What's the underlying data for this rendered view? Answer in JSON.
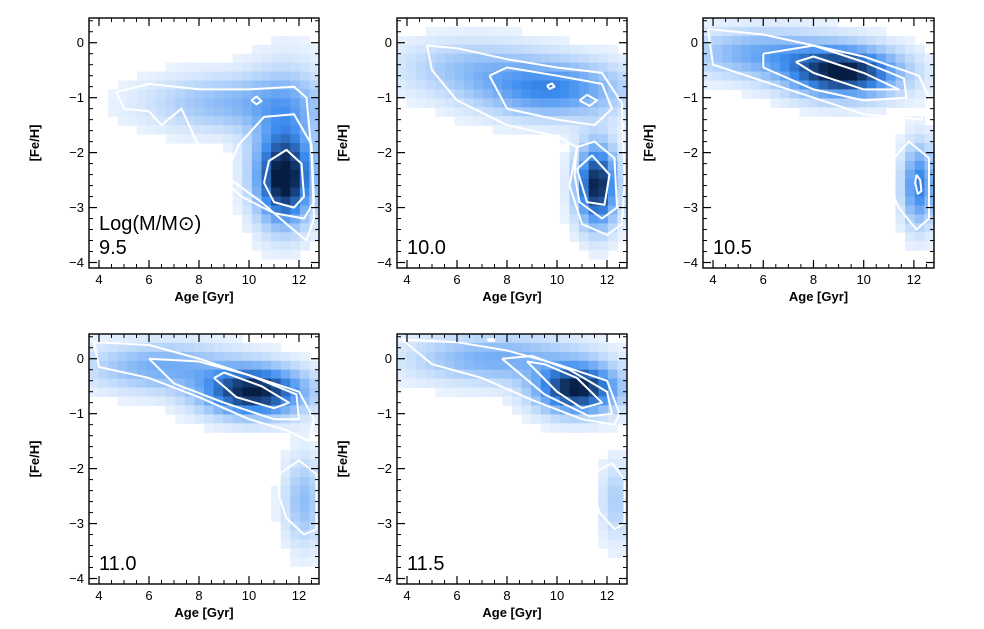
{
  "colors": {
    "low": "#f4f9ff",
    "mid": "#3c8cf0",
    "high": "#061d44",
    "contour": "#ffffff",
    "axis": "#000000"
  },
  "chart_data": [
    {
      "type": "heatmap",
      "label_lines": [
        "Log(M/M⊙)",
        "9.5"
      ],
      "xlabel": "Age [Gyr]",
      "ylabel": "[Fe/H]",
      "xlim": [
        3.6,
        12.8
      ],
      "ylim": [
        -4.1,
        0.45
      ],
      "xticks": [
        4,
        6,
        8,
        10,
        12
      ],
      "yticks": [
        0,
        -1,
        -2,
        -3,
        -4
      ],
      "blobs": [
        {
          "x": 11.4,
          "y": -2.5,
          "sx": 0.75,
          "sy": 0.55,
          "amp": 1.0
        },
        {
          "x": 9.5,
          "y": -1.1,
          "sx": 2.4,
          "sy": 0.35,
          "amp": 0.32
        },
        {
          "x": 11.5,
          "y": -1.5,
          "sx": 1.0,
          "sy": 0.8,
          "amp": 0.25
        }
      ],
      "contours": [
        [
          [
            4.7,
            -0.9
          ],
          [
            6.0,
            -0.75
          ],
          [
            8.0,
            -0.85
          ],
          [
            10.0,
            -0.85
          ],
          [
            11.8,
            -0.8
          ],
          [
            12.3,
            -1.0
          ],
          [
            12.5,
            -2.0
          ],
          [
            12.6,
            -3.2
          ],
          [
            12.3,
            -3.6
          ],
          [
            11.5,
            -3.3
          ],
          [
            10.5,
            -2.9
          ],
          [
            9.0,
            -2.4
          ],
          [
            8.0,
            -1.9
          ],
          [
            7.3,
            -1.2
          ],
          [
            6.5,
            -1.5
          ],
          [
            6.0,
            -1.25
          ],
          [
            5.0,
            -1.2
          ],
          [
            4.7,
            -0.9
          ]
        ],
        [
          [
            9.0,
            -2.5
          ],
          [
            9.6,
            -1.85
          ],
          [
            10.6,
            -1.35
          ],
          [
            11.8,
            -1.3
          ],
          [
            12.5,
            -1.85
          ],
          [
            12.6,
            -2.9
          ],
          [
            12.2,
            -3.2
          ],
          [
            11.0,
            -3.1
          ],
          [
            9.7,
            -2.8
          ],
          [
            9.0,
            -2.5
          ]
        ],
        [
          [
            10.6,
            -2.55
          ],
          [
            10.8,
            -2.15
          ],
          [
            11.5,
            -1.95
          ],
          [
            12.1,
            -2.2
          ],
          [
            12.2,
            -2.8
          ],
          [
            11.8,
            -3.0
          ],
          [
            11.0,
            -2.9
          ],
          [
            10.6,
            -2.55
          ]
        ],
        [
          [
            10.1,
            -1.05
          ],
          [
            10.3,
            -0.98
          ],
          [
            10.5,
            -1.06
          ],
          [
            10.3,
            -1.12
          ],
          [
            10.1,
            -1.05
          ]
        ]
      ]
    },
    {
      "type": "heatmap",
      "label_lines": [
        "10.0"
      ],
      "xlabel": "Age [Gyr]",
      "ylabel": "[Fe/H]",
      "xlim": [
        3.6,
        12.8
      ],
      "ylim": [
        -4.1,
        0.45
      ],
      "xticks": [
        4,
        6,
        8,
        10,
        12
      ],
      "yticks": [
        0,
        -1,
        -2,
        -3,
        -4
      ],
      "blobs": [
        {
          "x": 11.6,
          "y": -2.6,
          "sx": 0.55,
          "sy": 0.5,
          "amp": 1.0
        },
        {
          "x": 9.8,
          "y": -0.85,
          "sx": 2.0,
          "sy": 0.35,
          "amp": 0.55
        },
        {
          "x": 6.5,
          "y": -0.45,
          "sx": 2.0,
          "sy": 0.35,
          "amp": 0.25
        }
      ],
      "contours": [
        [
          [
            4.8,
            -0.05
          ],
          [
            6.0,
            -0.1
          ],
          [
            8.0,
            -0.3
          ],
          [
            10.0,
            -0.45
          ],
          [
            11.8,
            -0.55
          ],
          [
            12.6,
            -1.1
          ],
          [
            12.7,
            -2.5
          ],
          [
            12.6,
            -3.3
          ],
          [
            12.0,
            -3.5
          ],
          [
            11.0,
            -3.3
          ],
          [
            10.5,
            -2.6
          ],
          [
            10.8,
            -1.9
          ],
          [
            10.0,
            -1.7
          ],
          [
            8.0,
            -1.5
          ],
          [
            6.0,
            -1.05
          ],
          [
            5.0,
            -0.5
          ],
          [
            4.8,
            -0.05
          ]
        ],
        [
          [
            7.3,
            -0.6
          ],
          [
            8.0,
            -0.45
          ],
          [
            10.0,
            -0.6
          ],
          [
            11.8,
            -0.75
          ],
          [
            12.2,
            -1.2
          ],
          [
            11.5,
            -1.5
          ],
          [
            10.0,
            -1.4
          ],
          [
            8.0,
            -1.2
          ],
          [
            7.3,
            -0.6
          ]
        ],
        [
          [
            10.8,
            -1.9
          ],
          [
            11.5,
            -1.8
          ],
          [
            12.3,
            -2.1
          ],
          [
            12.4,
            -3.0
          ],
          [
            11.8,
            -3.2
          ],
          [
            10.9,
            -2.9
          ],
          [
            10.7,
            -2.4
          ],
          [
            10.8,
            -1.9
          ]
        ],
        [
          [
            10.8,
            -2.3
          ],
          [
            11.4,
            -2.05
          ],
          [
            12.1,
            -2.4
          ],
          [
            11.9,
            -2.95
          ],
          [
            11.2,
            -2.9
          ],
          [
            10.8,
            -2.3
          ]
        ],
        [
          [
            10.9,
            -1.05
          ],
          [
            11.2,
            -0.95
          ],
          [
            11.6,
            -1.05
          ],
          [
            11.3,
            -1.15
          ],
          [
            10.9,
            -1.05
          ]
        ],
        [
          [
            9.6,
            -0.78
          ],
          [
            9.8,
            -0.74
          ],
          [
            9.9,
            -0.8
          ],
          [
            9.7,
            -0.84
          ],
          [
            9.6,
            -0.78
          ]
        ]
      ]
    },
    {
      "type": "heatmap",
      "label_lines": [
        "10.5"
      ],
      "xlabel": "Age [Gyr]",
      "ylabel": "[Fe/H]",
      "xlim": [
        3.6,
        12.8
      ],
      "ylim": [
        -4.1,
        0.45
      ],
      "xticks": [
        4,
        6,
        8,
        10,
        12
      ],
      "yticks": [
        0,
        -1,
        -2,
        -3,
        -4
      ],
      "blobs": [
        {
          "x": 9.2,
          "y": -0.55,
          "sx": 1.5,
          "sy": 0.3,
          "amp": 1.0
        },
        {
          "x": 6.0,
          "y": -0.2,
          "sx": 2.0,
          "sy": 0.3,
          "amp": 0.4
        },
        {
          "x": 12.2,
          "y": -2.6,
          "sx": 0.45,
          "sy": 0.5,
          "amp": 0.6
        }
      ],
      "contours": [
        [
          [
            3.8,
            0.25
          ],
          [
            6.0,
            0.15
          ],
          [
            8.0,
            -0.05
          ],
          [
            10.0,
            -0.25
          ],
          [
            12.2,
            -0.6
          ],
          [
            12.6,
            -1.0
          ],
          [
            12.3,
            -1.4
          ],
          [
            10.0,
            -1.3
          ],
          [
            8.0,
            -1.0
          ],
          [
            6.0,
            -0.7
          ],
          [
            4.0,
            -0.4
          ],
          [
            3.8,
            0.25
          ]
        ],
        [
          [
            6.0,
            -0.2
          ],
          [
            8.0,
            -0.05
          ],
          [
            10.0,
            -0.35
          ],
          [
            11.6,
            -0.65
          ],
          [
            11.7,
            -1.0
          ],
          [
            10.0,
            -1.05
          ],
          [
            8.0,
            -0.85
          ],
          [
            6.0,
            -0.45
          ],
          [
            6.0,
            -0.2
          ]
        ],
        [
          [
            7.3,
            -0.35
          ],
          [
            8.0,
            -0.25
          ],
          [
            10.0,
            -0.55
          ],
          [
            11.4,
            -0.85
          ],
          [
            10.0,
            -0.85
          ],
          [
            8.0,
            -0.55
          ],
          [
            7.3,
            -0.35
          ]
        ],
        [
          [
            11.0,
            -2.2
          ],
          [
            11.8,
            -1.8
          ],
          [
            12.6,
            -2.1
          ],
          [
            12.6,
            -3.2
          ],
          [
            12.1,
            -3.4
          ],
          [
            11.4,
            -3.0
          ],
          [
            11.0,
            -2.6
          ],
          [
            11.0,
            -2.2
          ]
        ],
        [
          [
            12.1,
            -2.4
          ],
          [
            12.25,
            -2.5
          ],
          [
            12.3,
            -2.7
          ],
          [
            12.15,
            -2.75
          ],
          [
            12.05,
            -2.55
          ],
          [
            12.1,
            -2.4
          ]
        ]
      ]
    },
    {
      "type": "heatmap",
      "label_lines": [
        "11.0"
      ],
      "xlabel": "Age [Gyr]",
      "ylabel": "[Fe/H]",
      "xlim": [
        3.6,
        12.8
      ],
      "ylim": [
        -4.1,
        0.45
      ],
      "xticks": [
        4,
        6,
        8,
        10,
        12
      ],
      "yticks": [
        0,
        -1,
        -2,
        -3,
        -4
      ],
      "blobs": [
        {
          "x": 10.2,
          "y": -0.6,
          "sx": 1.4,
          "sy": 0.3,
          "amp": 1.0
        },
        {
          "x": 6.5,
          "y": -0.15,
          "sx": 2.0,
          "sy": 0.3,
          "amp": 0.38
        },
        {
          "x": 12.2,
          "y": -2.6,
          "sx": 0.55,
          "sy": 0.55,
          "amp": 0.3
        }
      ],
      "contours": [
        [
          [
            3.8,
            0.3
          ],
          [
            6.0,
            0.25
          ],
          [
            8.0,
            0.0
          ],
          [
            10.0,
            -0.3
          ],
          [
            12.0,
            -0.6
          ],
          [
            12.6,
            -1.1
          ],
          [
            12.4,
            -1.5
          ],
          [
            11.5,
            -1.3
          ],
          [
            10.0,
            -1.1
          ],
          [
            8.0,
            -0.7
          ],
          [
            6.0,
            -0.35
          ],
          [
            4.0,
            -0.15
          ],
          [
            3.8,
            0.3
          ]
        ],
        [
          [
            6.0,
            0.0
          ],
          [
            8.0,
            -0.05
          ],
          [
            10.0,
            -0.3
          ],
          [
            11.9,
            -0.65
          ],
          [
            12.0,
            -1.1
          ],
          [
            11.0,
            -1.1
          ],
          [
            9.0,
            -0.8
          ],
          [
            7.0,
            -0.45
          ],
          [
            6.0,
            0.0
          ]
        ],
        [
          [
            8.6,
            -0.35
          ],
          [
            9.0,
            -0.25
          ],
          [
            10.5,
            -0.5
          ],
          [
            11.6,
            -0.8
          ],
          [
            11.0,
            -0.9
          ],
          [
            9.5,
            -0.7
          ],
          [
            8.6,
            -0.35
          ]
        ],
        [
          [
            11.2,
            -2.1
          ],
          [
            12.0,
            -1.85
          ],
          [
            12.7,
            -2.1
          ],
          [
            12.7,
            -3.1
          ],
          [
            12.2,
            -3.2
          ],
          [
            11.5,
            -2.9
          ],
          [
            11.2,
            -2.5
          ],
          [
            11.2,
            -2.1
          ]
        ]
      ]
    },
    {
      "type": "heatmap",
      "label_lines": [
        "11.5"
      ],
      "xlabel": "Age [Gyr]",
      "ylabel": "[Fe/H]",
      "xlim": [
        3.6,
        12.8
      ],
      "ylim": [
        -4.1,
        0.45
      ],
      "xticks": [
        4,
        6,
        8,
        10,
        12
      ],
      "yticks": [
        0,
        -1,
        -2,
        -3,
        -4
      ],
      "blobs": [
        {
          "x": 10.8,
          "y": -0.55,
          "sx": 1.1,
          "sy": 0.3,
          "amp": 1.0
        },
        {
          "x": 7.5,
          "y": 0.0,
          "sx": 2.3,
          "sy": 0.3,
          "amp": 0.38
        },
        {
          "x": 12.4,
          "y": -2.6,
          "sx": 0.45,
          "sy": 0.5,
          "amp": 0.22
        }
      ],
      "contours": [
        [
          [
            3.8,
            0.35
          ],
          [
            6.0,
            0.3
          ],
          [
            8.0,
            0.15
          ],
          [
            10.0,
            -0.1
          ],
          [
            12.0,
            -0.4
          ],
          [
            12.5,
            -1.0
          ],
          [
            12.3,
            -1.2
          ],
          [
            11.0,
            -1.1
          ],
          [
            9.0,
            -0.75
          ],
          [
            7.0,
            -0.35
          ],
          [
            5.0,
            -0.1
          ],
          [
            3.8,
            0.35
          ]
        ],
        [
          [
            7.8,
            0.0
          ],
          [
            9.0,
            0.05
          ],
          [
            10.5,
            -0.2
          ],
          [
            12.0,
            -0.6
          ],
          [
            12.2,
            -1.0
          ],
          [
            11.3,
            -1.05
          ],
          [
            9.5,
            -0.65
          ],
          [
            7.8,
            0.0
          ]
        ],
        [
          [
            8.8,
            -0.05
          ],
          [
            9.5,
            -0.1
          ],
          [
            10.8,
            -0.35
          ],
          [
            11.8,
            -0.8
          ],
          [
            11.0,
            -0.9
          ],
          [
            10.0,
            -0.6
          ],
          [
            8.8,
            -0.05
          ]
        ],
        [
          [
            7.2,
            0.35
          ],
          [
            7.4,
            0.36
          ],
          [
            7.5,
            0.33
          ],
          [
            7.3,
            0.32
          ],
          [
            7.2,
            0.35
          ]
        ],
        [
          [
            11.4,
            -2.1
          ],
          [
            12.2,
            -1.9
          ],
          [
            12.7,
            -2.2
          ],
          [
            12.7,
            -3.0
          ],
          [
            12.3,
            -3.1
          ],
          [
            11.7,
            -2.8
          ],
          [
            11.4,
            -2.4
          ],
          [
            11.4,
            -2.1
          ]
        ]
      ]
    }
  ]
}
